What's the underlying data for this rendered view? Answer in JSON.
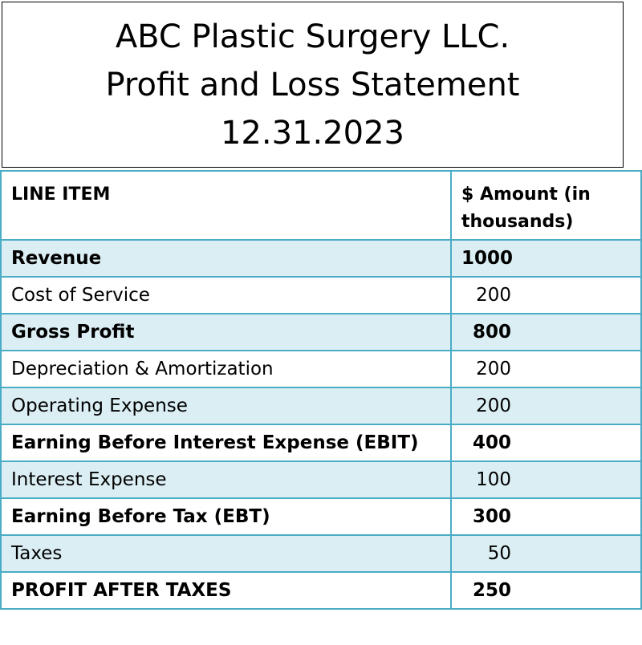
{
  "title": {
    "line1": "ABC Plastic Surgery LLC.",
    "line2": "Profit and Loss Statement",
    "line3": "12.31.2023"
  },
  "table": {
    "header": {
      "item": "LINE ITEM",
      "amount": "$ Amount (in thousands)"
    },
    "rows": [
      {
        "item": "Revenue",
        "amount": "1000"
      },
      {
        "item": "Cost of Service",
        "amount": "200"
      },
      {
        "item": "Gross Profit",
        "amount": "800"
      },
      {
        "item": "Depreciation & Amortization",
        "amount": "200"
      },
      {
        "item": "Operating Expense",
        "amount": "200"
      },
      {
        "item": "Earning Before Interest Expense (EBIT)",
        "amount": "400"
      },
      {
        "item": "Interest Expense",
        "amount": "100"
      },
      {
        "item": "Earning Before Tax (EBT)",
        "amount": "300"
      },
      {
        "item": "Taxes",
        "amount": "50"
      },
      {
        "item": "PROFIT AFTER TAXES",
        "amount": "250"
      }
    ]
  },
  "colors": {
    "border": "#4bacc6",
    "shade": "#dbeef4"
  }
}
